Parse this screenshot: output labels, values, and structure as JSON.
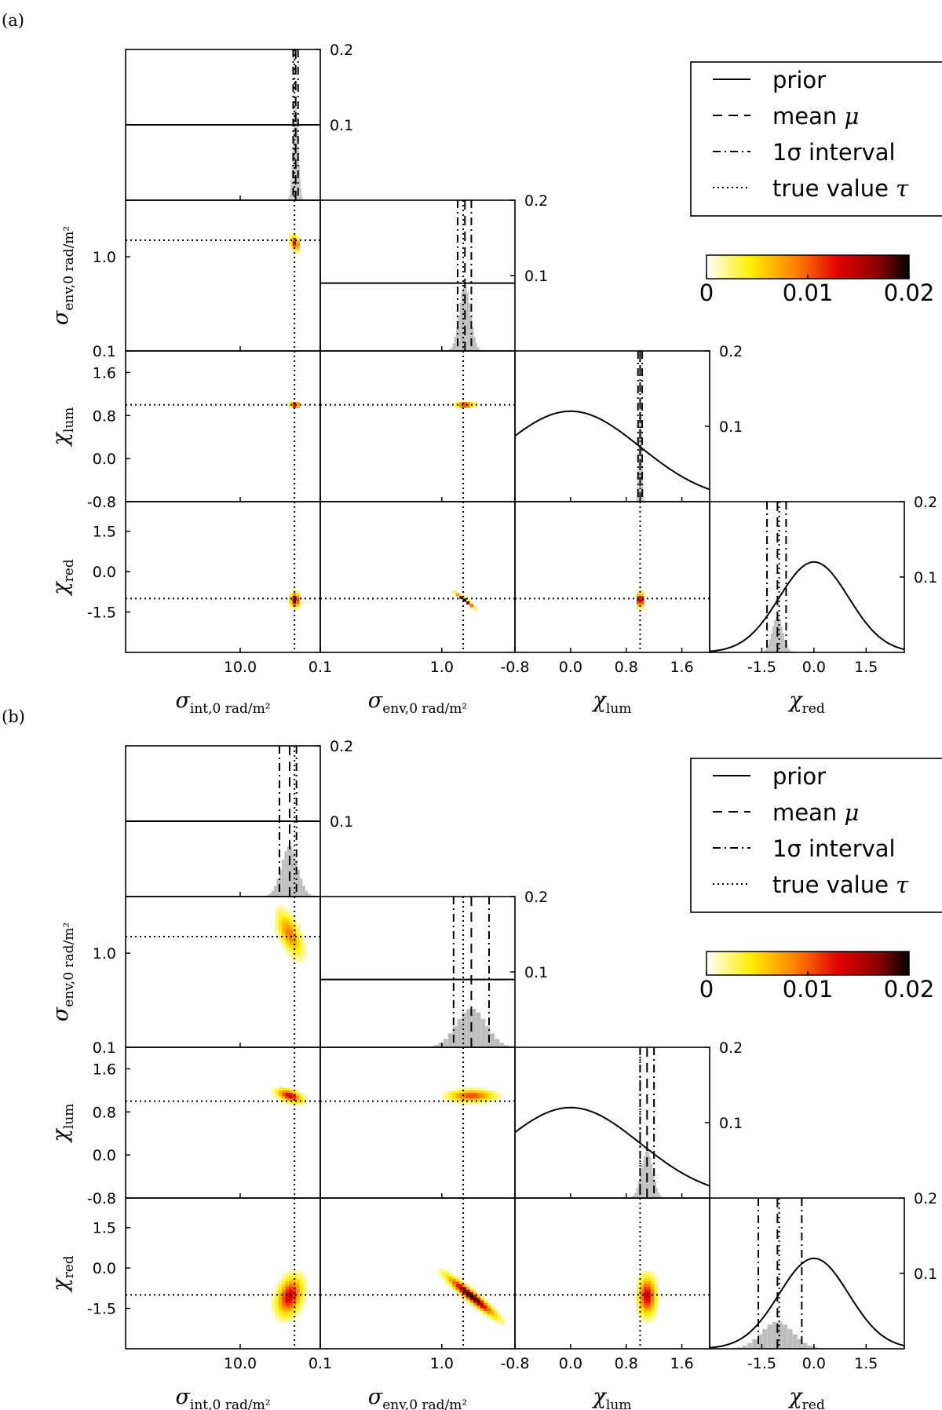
{
  "chart_data": [
    {
      "panel": "(a)",
      "type": "corner",
      "parameters": [
        "σint,0 rad/m²",
        "σenv,0 rad/m²",
        "χlum",
        "χred"
      ],
      "axes": {
        "sigma_int": {
          "scale": "log",
          "range": [
            1,
            50
          ],
          "ticks": [
            10.0
          ],
          "tick_labels": [
            "10.0"
          ],
          "label": "σ",
          "label_sub": "int,0 rad/m²"
        },
        "sigma_env": {
          "scale": "log",
          "range": [
            0.1,
            4
          ],
          "ticks": [
            0.1,
            1.0
          ],
          "tick_labels": [
            "0.1",
            "1.0"
          ],
          "label": "σ",
          "label_sub": "env,0 rad/m²"
        },
        "chi_lum": {
          "scale": "linear",
          "range": [
            -0.8,
            2.0
          ],
          "ticks": [
            -0.8,
            0.0,
            0.8,
            1.6
          ],
          "tick_labels": [
            "-0.8",
            "0.0",
            "0.8",
            "1.6"
          ],
          "label": "χ",
          "label_sub": "lum"
        },
        "chi_red": {
          "scale": "linear",
          "range": [
            -3.0,
            2.6
          ],
          "ticks": [
            -1.5,
            0.0,
            1.5
          ],
          "tick_labels": [
            "-1.5",
            "0.0",
            "1.5"
          ],
          "label": "χ",
          "label_sub": "red"
        }
      },
      "diag_yaxis": {
        "range": [
          0,
          0.2
        ],
        "ticks": [
          0.1,
          0.2
        ],
        "tick_labels": [
          "0.1",
          "0.2"
        ]
      },
      "diagonal": [
        {
          "param": "sigma_int",
          "mean": 30.5,
          "interval": [
            29.0,
            32.0
          ],
          "true": 29.8,
          "spread": 0.022,
          "prior": {
            "type": "flat",
            "value": 0.1
          }
        },
        {
          "param": "sigma_env",
          "mean": 1.55,
          "interval": [
            1.35,
            1.75
          ],
          "true": 1.5,
          "spread": 0.045,
          "prior": {
            "type": "flat",
            "value": 0.09
          }
        },
        {
          "param": "chi_lum",
          "mean": 1.0,
          "interval": [
            0.97,
            1.03
          ],
          "true": 1.0,
          "spread": 0.02,
          "prior": {
            "type": "gaussian",
            "center": 0.0,
            "peak": 0.12
          }
        },
        {
          "param": "chi_red",
          "mean": -1.05,
          "interval": [
            -1.35,
            -0.8
          ],
          "true": -1.0,
          "spread": 0.15,
          "prior": {
            "type": "gaussian",
            "center": 0.0,
            "peak": 0.12
          }
        }
      ],
      "joint": [
        {
          "x": "sigma_int",
          "y": "sigma_env",
          "cx": 30.0,
          "cy": 1.4,
          "sx": 0.025,
          "sy": 0.05,
          "corr": -0.3,
          "peak": 0.013
        },
        {
          "x": "sigma_int",
          "y": "chi_lum",
          "cx": 30.0,
          "cy": 1.0,
          "sx": 0.025,
          "sy": 0.03,
          "corr": 0.0,
          "peak": 0.017
        },
        {
          "x": "sigma_env",
          "y": "chi_lum",
          "cx": 1.55,
          "cy": 1.0,
          "sx": 0.045,
          "sy": 0.03,
          "corr": 0.0,
          "peak": 0.014
        },
        {
          "x": "sigma_int",
          "y": "chi_red",
          "cx": 30.0,
          "cy": -1.05,
          "sx": 0.025,
          "sy": 0.16,
          "corr": 0.0,
          "peak": 0.018
        },
        {
          "x": "sigma_env",
          "y": "chi_red",
          "cx": 1.55,
          "cy": -1.05,
          "sx": 0.045,
          "sy": 0.16,
          "corr": -0.96,
          "peak": 0.02
        },
        {
          "x": "chi_lum",
          "y": "chi_red",
          "cx": 1.0,
          "cy": -1.05,
          "sx": 0.03,
          "sy": 0.16,
          "corr": 0.0,
          "peak": 0.018
        }
      ],
      "true_values": {
        "sigma_int": 29.8,
        "sigma_env": 1.5,
        "chi_lum": 1.0,
        "chi_red": -1.0
      }
    },
    {
      "panel": "(b)",
      "type": "corner",
      "parameters": [
        "σint,0 rad/m²",
        "σenv,0 rad/m²",
        "χlum",
        "χred"
      ],
      "axes": {
        "sigma_int": {
          "scale": "log",
          "range": [
            1,
            50
          ],
          "ticks": [
            10.0
          ],
          "tick_labels": [
            "10.0"
          ],
          "label": "σ",
          "label_sub": "int,0 rad/m²"
        },
        "sigma_env": {
          "scale": "log",
          "range": [
            0.1,
            4
          ],
          "ticks": [
            0.1,
            1.0
          ],
          "tick_labels": [
            "0.1",
            "1.0"
          ],
          "label": "σ",
          "label_sub": "env,0 rad/m²"
        },
        "chi_lum": {
          "scale": "linear",
          "range": [
            -0.8,
            2.0
          ],
          "ticks": [
            -0.8,
            0.0,
            0.8,
            1.6
          ],
          "tick_labels": [
            "-0.8",
            "0.0",
            "0.8",
            "1.6"
          ],
          "label": "χ",
          "label_sub": "lum"
        },
        "chi_red": {
          "scale": "linear",
          "range": [
            -3.0,
            2.6
          ],
          "ticks": [
            -1.5,
            0.0,
            1.5
          ],
          "tick_labels": [
            "-1.5",
            "0.0",
            "1.5"
          ],
          "label": "χ",
          "label_sub": "red"
        }
      },
      "diag_yaxis": {
        "range": [
          0,
          0.2
        ],
        "ticks": [
          0.1,
          0.2
        ],
        "tick_labels": [
          "0.1",
          "0.2"
        ]
      },
      "diagonal": [
        {
          "param": "sigma_int",
          "mean": 27.0,
          "interval": [
            22.0,
            31.0
          ],
          "true": 29.8,
          "spread": 0.07,
          "prior": {
            "type": "flat",
            "value": 0.1
          }
        },
        {
          "param": "sigma_env",
          "mean": 1.75,
          "interval": [
            1.25,
            2.45
          ],
          "true": 1.5,
          "spread": 0.12,
          "prior": {
            "type": "flat",
            "value": 0.09
          }
        },
        {
          "param": "chi_lum",
          "mean": 1.1,
          "interval": [
            1.0,
            1.2
          ],
          "true": 1.0,
          "spread": 0.08,
          "prior": {
            "type": "gaussian",
            "center": 0.0,
            "peak": 0.12
          }
        },
        {
          "param": "chi_red",
          "mean": -1.05,
          "interval": [
            -1.6,
            -0.35
          ],
          "true": -1.0,
          "spread": 0.45,
          "prior": {
            "type": "gaussian",
            "center": 0.0,
            "peak": 0.12
          }
        }
      ],
      "joint": [
        {
          "x": "sigma_int",
          "y": "sigma_env",
          "cx": 27.0,
          "cy": 1.6,
          "sx": 0.07,
          "sy": 0.15,
          "corr": -0.6,
          "peak": 0.009
        },
        {
          "x": "sigma_int",
          "y": "chi_lum",
          "cx": 27.0,
          "cy": 1.1,
          "sx": 0.07,
          "sy": 0.08,
          "corr": -0.5,
          "peak": 0.014
        },
        {
          "x": "sigma_env",
          "y": "chi_lum",
          "cx": 1.75,
          "cy": 1.1,
          "sx": 0.12,
          "sy": 0.07,
          "corr": 0.0,
          "peak": 0.011
        },
        {
          "x": "sigma_int",
          "y": "chi_red",
          "cx": 27.0,
          "cy": -1.05,
          "sx": 0.07,
          "sy": 0.45,
          "corr": 0.3,
          "peak": 0.014
        },
        {
          "x": "sigma_env",
          "y": "chi_red",
          "cx": 1.75,
          "cy": -1.05,
          "sx": 0.12,
          "sy": 0.45,
          "corr": -0.95,
          "peak": 0.02
        },
        {
          "x": "chi_lum",
          "y": "chi_red",
          "cx": 1.1,
          "cy": -1.05,
          "sx": 0.08,
          "sy": 0.45,
          "corr": 0.0,
          "peak": 0.014
        }
      ],
      "true_values": {
        "sigma_int": 29.8,
        "sigma_env": 1.5,
        "chi_lum": 1.0,
        "chi_red": -1.0
      }
    }
  ],
  "legend": {
    "entries": [
      {
        "style": "solid",
        "label": "prior"
      },
      {
        "style": "dashed",
        "label": "mean",
        "symbol": "μ"
      },
      {
        "style": "dashdot",
        "label": "1σ interval"
      },
      {
        "style": "dotted",
        "label": "true value",
        "symbol": "τ"
      }
    ]
  },
  "colorbar": {
    "range": [
      0,
      0.02
    ],
    "ticks": [
      0,
      0.01,
      0.02
    ],
    "tick_labels": [
      "0",
      "0.01",
      "0.02"
    ],
    "colors": [
      "#ffffff",
      "#ffee00",
      "#ff7a00",
      "#e00000",
      "#8b0000",
      "#000000"
    ]
  }
}
